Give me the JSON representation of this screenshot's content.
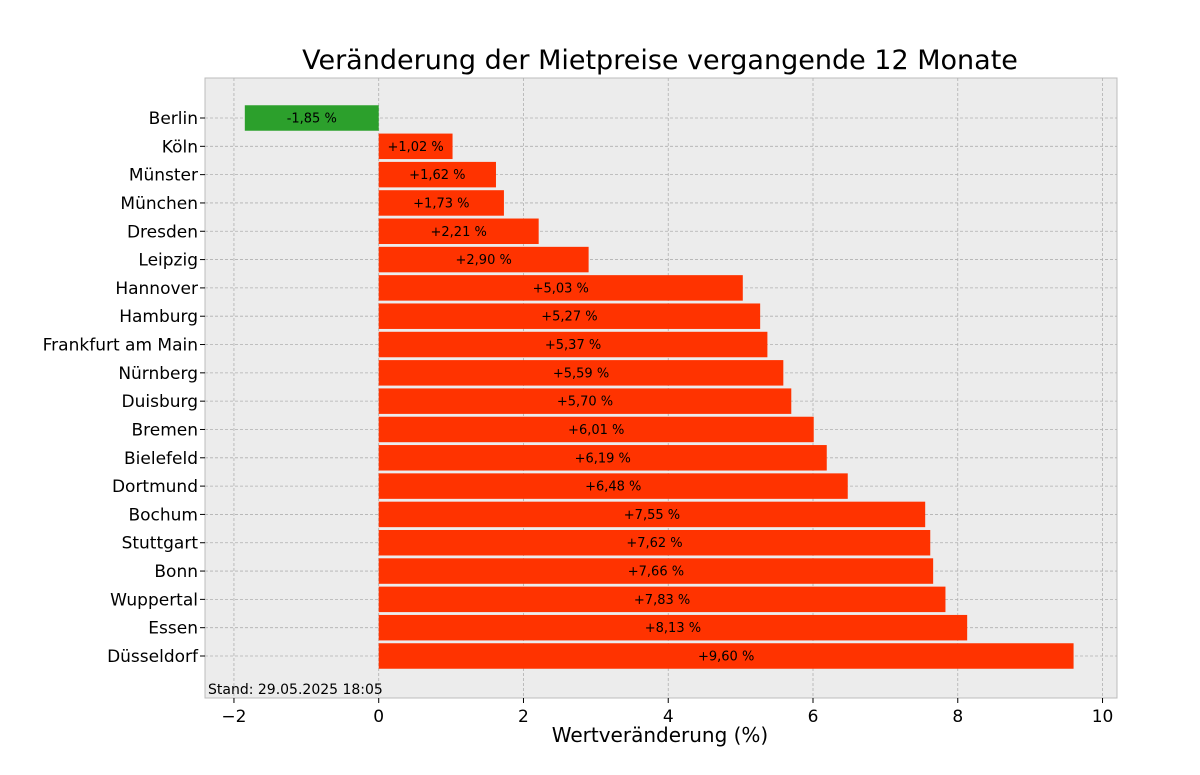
{
  "chart_data": {
    "type": "bar",
    "orientation": "horizontal",
    "title": "Veränderung der Mietpreise vergangende 12 Monate",
    "xlabel": "Wertveränderung (%)",
    "ylabel": "",
    "xlim": [
      -2.4,
      10.2
    ],
    "xticks": [
      -2,
      0,
      2,
      4,
      6,
      8,
      10
    ],
    "xtick_labels": [
      "−2",
      "0",
      "2",
      "4",
      "6",
      "8",
      "10"
    ],
    "grid": true,
    "footnote": "Stand: 29.05.2025 18:05",
    "colors": {
      "positive": "#ff3300",
      "negative": "#2ca02c",
      "background": "#ececec",
      "grid": "#b0b0b0"
    },
    "categories": [
      "Berlin",
      "Köln",
      "Münster",
      "München",
      "Dresden",
      "Leipzig",
      "Hannover",
      "Hamburg",
      "Frankfurt am Main",
      "Nürnberg",
      "Duisburg",
      "Bremen",
      "Bielefeld",
      "Dortmund",
      "Bochum",
      "Stuttgart",
      "Bonn",
      "Wuppertal",
      "Essen",
      "Düsseldorf"
    ],
    "values": [
      -1.85,
      1.02,
      1.62,
      1.73,
      2.21,
      2.9,
      5.03,
      5.27,
      5.37,
      5.59,
      5.7,
      6.01,
      6.19,
      6.48,
      7.55,
      7.62,
      7.66,
      7.83,
      8.13,
      9.6
    ],
    "labels": [
      "-1,85 %",
      "+1,02 %",
      "+1,62 %",
      "+1,73 %",
      "+2,21 %",
      "+2,90 %",
      "+5,03 %",
      "+5,27 %",
      "+5,37 %",
      "+5,59 %",
      "+5,70 %",
      "+6,01 %",
      "+6,19 %",
      "+6,48 %",
      "+7,55 %",
      "+7,62 %",
      "+7,66 %",
      "+7,83 %",
      "+8,13 %",
      "+9,60 %"
    ]
  }
}
